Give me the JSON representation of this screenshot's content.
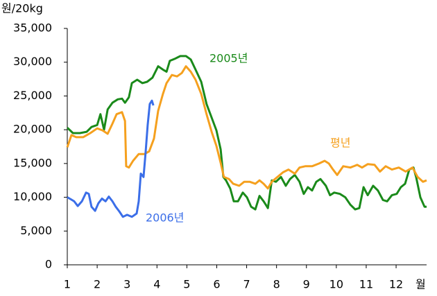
{
  "chart_data": {
    "type": "line",
    "ylabel": "원/20kg",
    "xlabel": "월",
    "xlim": [
      1,
      13.02
    ],
    "xticks": [
      1,
      2,
      3,
      4,
      5,
      6,
      7,
      8,
      9,
      10,
      11,
      12
    ],
    "ylim": [
      0,
      35000
    ],
    "yticks": [
      {
        "value": 0,
        "label": "0"
      },
      {
        "value": 5000,
        "label": "5,000"
      },
      {
        "value": 10000,
        "label": "10,000"
      },
      {
        "value": 15000,
        "label": "15,000"
      },
      {
        "value": 20000,
        "label": "20,000"
      },
      {
        "value": 25000,
        "label": "25,000"
      },
      {
        "value": 30000,
        "label": "30,000"
      },
      {
        "value": 35000,
        "label": "35,000"
      }
    ],
    "grid": false,
    "series": [
      {
        "name": "2005년",
        "color": "#1a8a1a",
        "x": [
          1.0,
          1.19,
          1.42,
          1.65,
          1.81,
          2.0,
          2.11,
          2.23,
          2.35,
          2.51,
          2.69,
          2.83,
          2.93,
          3.06,
          3.16,
          3.34,
          3.51,
          3.67,
          3.85,
          4.04,
          4.2,
          4.32,
          4.43,
          4.6,
          4.78,
          4.97,
          5.13,
          5.29,
          5.48,
          5.66,
          5.83,
          5.99,
          6.13,
          6.22,
          6.31,
          6.45,
          6.57,
          6.71,
          6.87,
          7.01,
          7.15,
          7.29,
          7.43,
          7.57,
          7.71,
          7.84,
          7.98,
          8.15,
          8.31,
          8.45,
          8.61,
          8.77,
          8.91,
          9.05,
          9.19,
          9.33,
          9.47,
          9.65,
          9.79,
          9.93,
          10.12,
          10.3,
          10.47,
          10.63,
          10.77,
          10.91,
          11.05,
          11.23,
          11.39,
          11.56,
          11.7,
          11.86,
          12.02,
          12.16,
          12.3,
          12.44,
          12.58,
          12.67,
          12.81,
          12.95,
          13.02
        ],
        "values": [
          20300,
          19500,
          19500,
          19700,
          20400,
          20700,
          22300,
          20000,
          23000,
          24000,
          24500,
          24600,
          24000,
          24800,
          26900,
          27400,
          26900,
          27100,
          27700,
          29400,
          28900,
          28600,
          30200,
          30500,
          30900,
          30900,
          30400,
          28900,
          27100,
          23800,
          21800,
          19900,
          17100,
          13000,
          12500,
          11300,
          9400,
          9400,
          10700,
          10000,
          8600,
          8200,
          10200,
          9400,
          8400,
          12500,
          12300,
          13000,
          11700,
          12700,
          13300,
          12300,
          10500,
          11500,
          11000,
          12300,
          12700,
          11700,
          10300,
          10700,
          10500,
          10000,
          8900,
          8200,
          8400,
          11500,
          10300,
          11700,
          11000,
          9600,
          9400,
          10300,
          10500,
          11500,
          12000,
          14100,
          14400,
          13000,
          10000,
          8600,
          8600
        ]
      },
      {
        "name": "평년",
        "color": "#f5a01e",
        "x": [
          1.0,
          1.14,
          1.3,
          1.53,
          1.77,
          2.0,
          2.18,
          2.35,
          2.51,
          2.65,
          2.83,
          2.93,
          2.97,
          3.06,
          3.2,
          3.39,
          3.58,
          3.74,
          3.9,
          4.04,
          4.2,
          4.32,
          4.5,
          4.67,
          4.83,
          4.97,
          5.13,
          5.29,
          5.48,
          5.66,
          5.83,
          5.99,
          6.13,
          6.24,
          6.41,
          6.55,
          6.75,
          6.92,
          7.1,
          7.29,
          7.43,
          7.57,
          7.71,
          7.84,
          8.03,
          8.22,
          8.4,
          8.61,
          8.77,
          8.96,
          9.19,
          9.42,
          9.61,
          9.75,
          9.89,
          10.03,
          10.23,
          10.47,
          10.7,
          10.86,
          11.05,
          11.28,
          11.46,
          11.65,
          11.86,
          12.09,
          12.32,
          12.55,
          12.72,
          12.9,
          13.02
        ],
        "values": [
          17400,
          19200,
          18900,
          18900,
          19500,
          20200,
          19900,
          19400,
          20900,
          22300,
          22600,
          21300,
          14600,
          14400,
          15400,
          16400,
          16400,
          16800,
          18700,
          22800,
          25300,
          26900,
          28100,
          27900,
          28400,
          29400,
          28600,
          27400,
          25300,
          22300,
          19700,
          17600,
          15100,
          13000,
          12700,
          12000,
          11700,
          12300,
          12300,
          12000,
          12500,
          12000,
          11300,
          12300,
          13000,
          13700,
          14100,
          13500,
          14400,
          14600,
          14600,
          15000,
          15400,
          15000,
          14100,
          13300,
          14600,
          14400,
          14800,
          14400,
          14900,
          14800,
          13800,
          14600,
          14100,
          14400,
          13800,
          14400,
          13000,
          12300,
          12500
        ]
      },
      {
        "name": "2006년",
        "color": "#3b6ee8",
        "x": [
          1.0,
          1.12,
          1.23,
          1.35,
          1.49,
          1.63,
          1.72,
          1.81,
          1.93,
          2.04,
          2.16,
          2.28,
          2.39,
          2.51,
          2.62,
          2.74,
          2.86,
          3.0,
          3.16,
          3.32,
          3.39,
          3.46,
          3.55,
          3.62,
          3.69,
          3.76,
          3.83,
          3.88
        ],
        "values": [
          10000,
          9700,
          9400,
          8700,
          9400,
          10700,
          10500,
          8600,
          8000,
          9100,
          9800,
          9400,
          10100,
          9400,
          8600,
          7900,
          7100,
          7400,
          7100,
          7600,
          9400,
          13500,
          13000,
          16600,
          20700,
          23800,
          24300,
          23600
        ]
      }
    ]
  }
}
